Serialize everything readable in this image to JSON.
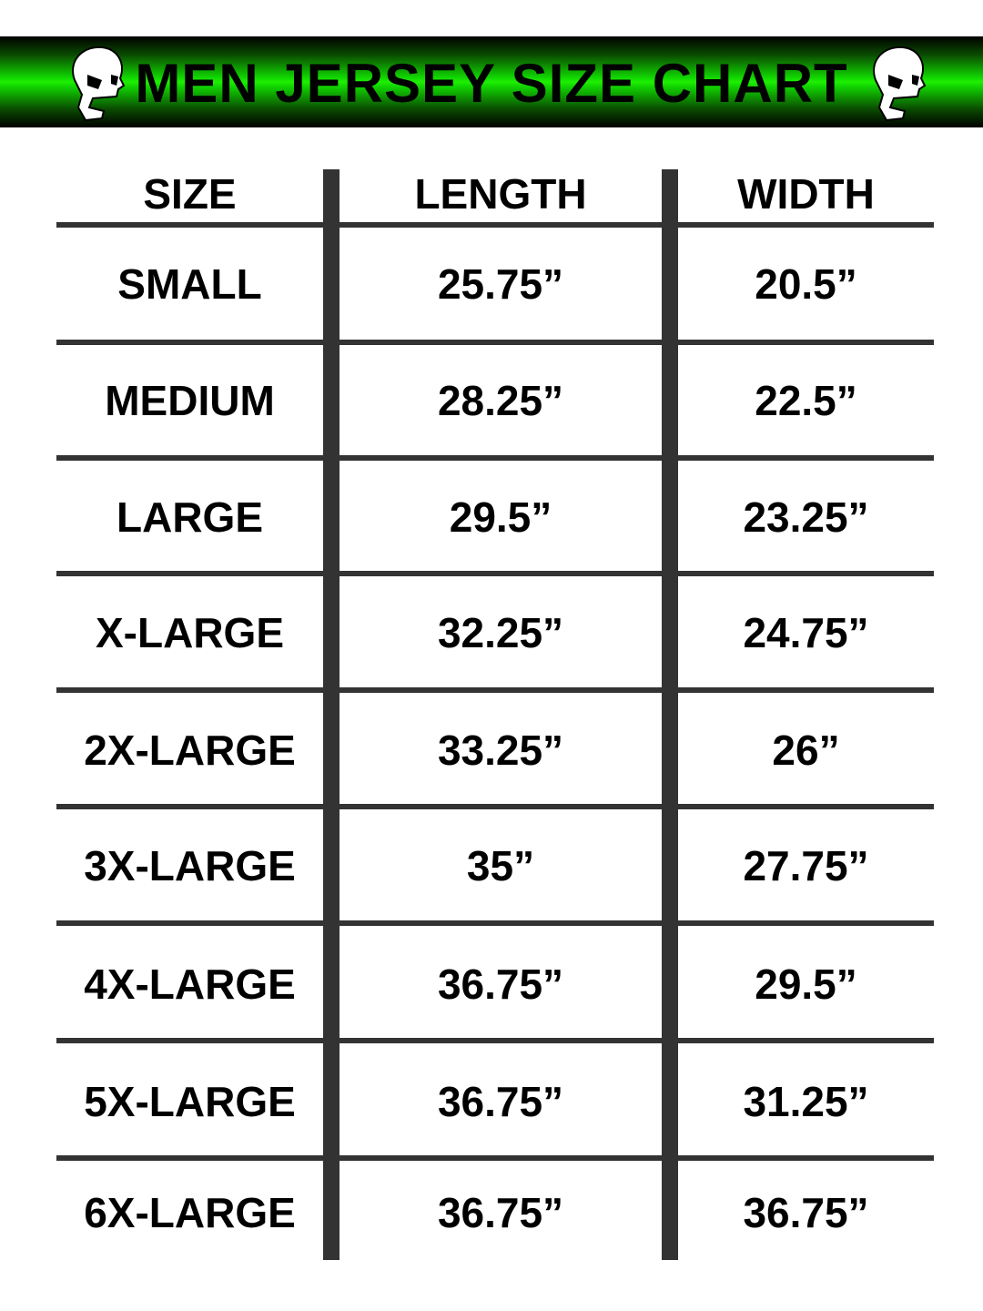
{
  "header": {
    "title": "MEN JERSEY SIZE CHART",
    "accent_color": "#1ef000",
    "icons": [
      "skull-icon",
      "skull-icon"
    ]
  },
  "table": {
    "columns": [
      "SIZE",
      "LENGTH",
      "WIDTH"
    ],
    "rows": [
      [
        "SMALL",
        "25.75”",
        "20.5”"
      ],
      [
        "MEDIUM",
        "28.25”",
        "22.5”"
      ],
      [
        "LARGE",
        "29.5”",
        "23.25”"
      ],
      [
        "X-LARGE",
        "32.25”",
        "24.75”"
      ],
      [
        "2X-LARGE",
        "33.25”",
        "26”"
      ],
      [
        "3X-LARGE",
        "35”",
        "27.75”"
      ],
      [
        "4X-LARGE",
        "36.75”",
        "29.5”"
      ],
      [
        "5X-LARGE",
        "36.75”",
        "31.25”"
      ],
      [
        "6X-LARGE",
        "36.75”",
        "36.75”"
      ]
    ]
  }
}
